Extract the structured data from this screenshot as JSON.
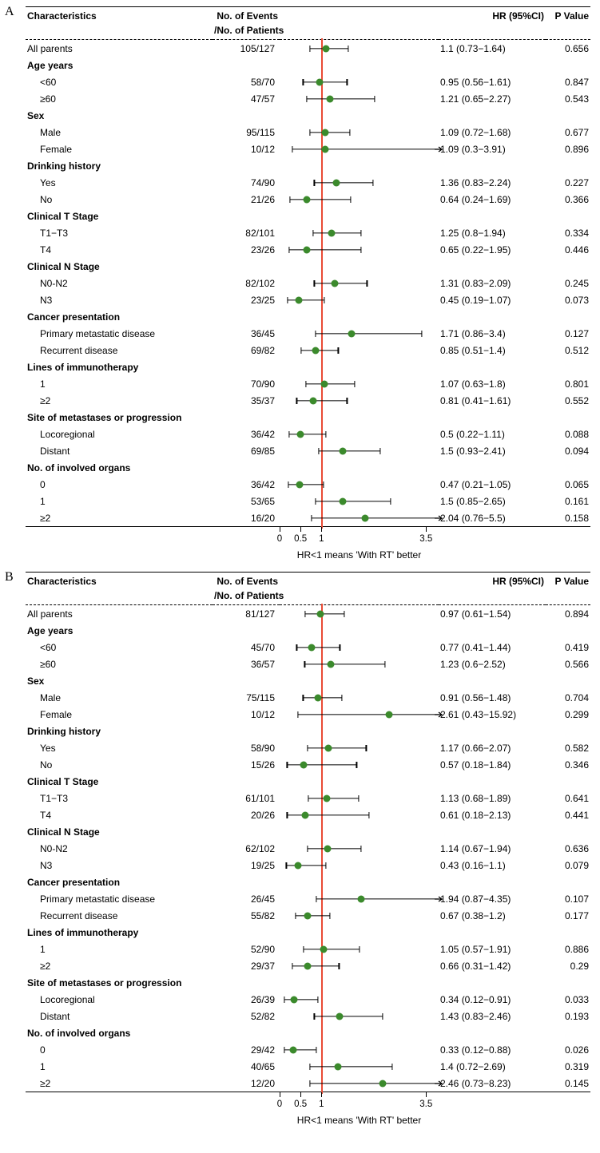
{
  "colors": {
    "dot": "#3b8a2c",
    "refline": "#e94b35",
    "ci": "#000000",
    "bg": "#ffffff",
    "text": "#000000"
  },
  "plot": {
    "xmin": 0,
    "xmax": 3.8,
    "ref": 1,
    "ticks": [
      {
        "v": 0,
        "label": "0"
      },
      {
        "v": 0.5,
        "label": "0.5"
      },
      {
        "v": 1,
        "label": "1"
      },
      {
        "v": 3.5,
        "label": "3.5"
      }
    ],
    "caption": "HR<1 means 'With RT' better"
  },
  "headers": {
    "characteristics": "Characteristics",
    "nev1": "No. of Events",
    "nev2": "/No. of Patients",
    "hr": "HR (95%CI)",
    "pv": "P Value"
  },
  "panels": [
    {
      "letter": "A",
      "rows": [
        {
          "type": "data",
          "label": "All parents",
          "nev": "105/127",
          "hr": 1.1,
          "lo": 0.73,
          "hi": 1.64,
          "hrtxt": "1.1 (0.73−1.64)",
          "p": "0.656"
        },
        {
          "type": "group",
          "label": "Age years"
        },
        {
          "type": "data",
          "label": "<60",
          "indent": true,
          "nev": "58/70",
          "hr": 0.95,
          "lo": 0.56,
          "hi": 1.61,
          "hrtxt": "0.95 (0.56−1.61)",
          "p": "0.847"
        },
        {
          "type": "data",
          "label": "≥60",
          "indent": true,
          "nev": "47/57",
          "hr": 1.21,
          "lo": 0.65,
          "hi": 2.27,
          "hrtxt": "1.21 (0.65−2.27)",
          "p": "0.543"
        },
        {
          "type": "group",
          "label": "Sex"
        },
        {
          "type": "data",
          "label": "Male",
          "indent": true,
          "nev": "95/115",
          "hr": 1.09,
          "lo": 0.72,
          "hi": 1.68,
          "hrtxt": "1.09 (0.72−1.68)",
          "p": "0.677"
        },
        {
          "type": "data",
          "label": "Female",
          "indent": true,
          "nev": "10/12",
          "hr": 1.09,
          "lo": 0.3,
          "hi": 3.91,
          "arrow": true,
          "hrtxt": "1.09 (0.3−3.91)",
          "p": "0.896"
        },
        {
          "type": "group",
          "label": "Drinking history"
        },
        {
          "type": "data",
          "label": "Yes",
          "indent": true,
          "nev": "74/90",
          "hr": 1.36,
          "lo": 0.83,
          "hi": 2.24,
          "hrtxt": "1.36 (0.83−2.24)",
          "p": "0.227"
        },
        {
          "type": "data",
          "label": "No",
          "indent": true,
          "nev": "21/26",
          "hr": 0.64,
          "lo": 0.24,
          "hi": 1.69,
          "hrtxt": "0.64 (0.24−1.69)",
          "p": "0.366"
        },
        {
          "type": "group",
          "label": "Clinical T Stage"
        },
        {
          "type": "data",
          "label": "T1−T3",
          "indent": true,
          "nev": "82/101",
          "hr": 1.25,
          "lo": 0.8,
          "hi": 1.94,
          "hrtxt": "1.25 (0.8−1.94)",
          "p": "0.334"
        },
        {
          "type": "data",
          "label": "T4",
          "indent": true,
          "nev": "23/26",
          "hr": 0.65,
          "lo": 0.22,
          "hi": 1.95,
          "hrtxt": "0.65 (0.22−1.95)",
          "p": "0.446"
        },
        {
          "type": "group",
          "label": "Clinical N Stage"
        },
        {
          "type": "data",
          "label": "N0-N2",
          "indent": true,
          "nev": "82/102",
          "hr": 1.31,
          "lo": 0.83,
          "hi": 2.09,
          "hrtxt": "1.31 (0.83−2.09)",
          "p": "0.245"
        },
        {
          "type": "data",
          "label": "N3",
          "indent": true,
          "nev": "23/25",
          "hr": 0.45,
          "lo": 0.19,
          "hi": 1.07,
          "hrtxt": "0.45 (0.19−1.07)",
          "p": "0.073"
        },
        {
          "type": "group",
          "label": "Cancer presentation"
        },
        {
          "type": "data",
          "label": "Primary metastatic disease",
          "indent": true,
          "nev": "36/45",
          "hr": 1.71,
          "lo": 0.86,
          "hi": 3.4,
          "hrtxt": "1.71 (0.86−3.4)",
          "p": "0.127"
        },
        {
          "type": "data",
          "label": "Recurrent disease",
          "indent": true,
          "nev": "69/82",
          "hr": 0.85,
          "lo": 0.51,
          "hi": 1.4,
          "hrtxt": "0.85 (0.51−1.4)",
          "p": "0.512"
        },
        {
          "type": "group",
          "label": "Lines of immunotherapy"
        },
        {
          "type": "data",
          "label": "1",
          "indent": true,
          "nev": "70/90",
          "hr": 1.07,
          "lo": 0.63,
          "hi": 1.8,
          "hrtxt": "1.07 (0.63−1.8)",
          "p": "0.801"
        },
        {
          "type": "data",
          "label": "≥2",
          "indent": true,
          "nev": "35/37",
          "hr": 0.81,
          "lo": 0.41,
          "hi": 1.61,
          "hrtxt": "0.81 (0.41−1.61)",
          "p": "0.552"
        },
        {
          "type": "group",
          "label": "Site of metastases or progression"
        },
        {
          "type": "data",
          "label": "Locoregional",
          "indent": true,
          "nev": "36/42",
          "hr": 0.5,
          "lo": 0.22,
          "hi": 1.11,
          "hrtxt": "0.5 (0.22−1.11)",
          "p": "0.088"
        },
        {
          "type": "data",
          "label": "Distant",
          "indent": true,
          "nev": "69/85",
          "hr": 1.5,
          "lo": 0.93,
          "hi": 2.41,
          "hrtxt": "1.5 (0.93−2.41)",
          "p": "0.094"
        },
        {
          "type": "group",
          "label": "No. of involved organs"
        },
        {
          "type": "data",
          "label": "0",
          "indent": true,
          "nev": "36/42",
          "hr": 0.47,
          "lo": 0.21,
          "hi": 1.05,
          "hrtxt": "0.47 (0.21−1.05)",
          "p": "0.065"
        },
        {
          "type": "data",
          "label": "1",
          "indent": true,
          "nev": "53/65",
          "hr": 1.5,
          "lo": 0.85,
          "hi": 2.65,
          "hrtxt": "1.5 (0.85−2.65)",
          "p": "0.161"
        },
        {
          "type": "data",
          "label": "≥2",
          "indent": true,
          "nev": "16/20",
          "hr": 2.04,
          "lo": 0.76,
          "hi": 5.5,
          "arrow": true,
          "hrtxt": "2.04 (0.76−5.5)",
          "p": "0.158"
        }
      ]
    },
    {
      "letter": "B",
      "rows": [
        {
          "type": "data",
          "label": "All parents",
          "nev": "81/127",
          "hr": 0.97,
          "lo": 0.61,
          "hi": 1.54,
          "hrtxt": "0.97 (0.61−1.54)",
          "p": "0.894"
        },
        {
          "type": "group",
          "label": "Age years"
        },
        {
          "type": "data",
          "label": "<60",
          "indent": true,
          "nev": "45/70",
          "hr": 0.77,
          "lo": 0.41,
          "hi": 1.44,
          "hrtxt": "0.77 (0.41−1.44)",
          "p": "0.419"
        },
        {
          "type": "data",
          "label": "≥60",
          "indent": true,
          "nev": "36/57",
          "hr": 1.23,
          "lo": 0.6,
          "hi": 2.52,
          "hrtxt": "1.23 (0.6−2.52)",
          "p": "0.566"
        },
        {
          "type": "group",
          "label": "Sex"
        },
        {
          "type": "data",
          "label": "Male",
          "indent": true,
          "nev": "75/115",
          "hr": 0.91,
          "lo": 0.56,
          "hi": 1.48,
          "hrtxt": "0.91 (0.56−1.48)",
          "p": "0.704"
        },
        {
          "type": "data",
          "label": "Female",
          "indent": true,
          "nev": "10/12",
          "hr": 2.61,
          "lo": 0.43,
          "hi": 15.92,
          "arrow": true,
          "hrtxt": "2.61 (0.43−15.92)",
          "p": "0.299"
        },
        {
          "type": "group",
          "label": "Drinking history"
        },
        {
          "type": "data",
          "label": "Yes",
          "indent": true,
          "nev": "58/90",
          "hr": 1.17,
          "lo": 0.66,
          "hi": 2.07,
          "hrtxt": "1.17 (0.66−2.07)",
          "p": "0.582"
        },
        {
          "type": "data",
          "label": "No",
          "indent": true,
          "nev": "15/26",
          "hr": 0.57,
          "lo": 0.18,
          "hi": 1.84,
          "hrtxt": "0.57 (0.18−1.84)",
          "p": "0.346"
        },
        {
          "type": "group",
          "label": "Clinical T Stage"
        },
        {
          "type": "data",
          "label": "T1−T3",
          "indent": true,
          "nev": "61/101",
          "hr": 1.13,
          "lo": 0.68,
          "hi": 1.89,
          "hrtxt": "1.13 (0.68−1.89)",
          "p": "0.641"
        },
        {
          "type": "data",
          "label": "T4",
          "indent": true,
          "nev": "20/26",
          "hr": 0.61,
          "lo": 0.18,
          "hi": 2.13,
          "hrtxt": "0.61 (0.18−2.13)",
          "p": "0.441"
        },
        {
          "type": "group",
          "label": "Clinical N Stage"
        },
        {
          "type": "data",
          "label": "N0-N2",
          "indent": true,
          "nev": "62/102",
          "hr": 1.14,
          "lo": 0.67,
          "hi": 1.94,
          "hrtxt": "1.14 (0.67−1.94)",
          "p": "0.636"
        },
        {
          "type": "data",
          "label": "N3",
          "indent": true,
          "nev": "19/25",
          "hr": 0.43,
          "lo": 0.16,
          "hi": 1.1,
          "hrtxt": "0.43 (0.16−1.1)",
          "p": "0.079"
        },
        {
          "type": "group",
          "label": "Cancer presentation"
        },
        {
          "type": "data",
          "label": "Primary metastatic disease",
          "indent": true,
          "nev": "26/45",
          "hr": 1.94,
          "lo": 0.87,
          "hi": 4.35,
          "arrow": true,
          "hrtxt": "1.94 (0.87−4.35)",
          "p": "0.107"
        },
        {
          "type": "data",
          "label": "Recurrent disease",
          "indent": true,
          "nev": "55/82",
          "hr": 0.67,
          "lo": 0.38,
          "hi": 1.2,
          "hrtxt": "0.67 (0.38−1.2)",
          "p": "0.177"
        },
        {
          "type": "group",
          "label": "Lines of immunotherapy"
        },
        {
          "type": "data",
          "label": "1",
          "indent": true,
          "nev": "52/90",
          "hr": 1.05,
          "lo": 0.57,
          "hi": 1.91,
          "hrtxt": "1.05 (0.57−1.91)",
          "p": "0.886"
        },
        {
          "type": "data",
          "label": "≥2",
          "indent": true,
          "nev": "29/37",
          "hr": 0.66,
          "lo": 0.31,
          "hi": 1.42,
          "hrtxt": "0.66 (0.31−1.42)",
          "p": "0.29"
        },
        {
          "type": "group",
          "label": "Site of metastases or progression"
        },
        {
          "type": "data",
          "label": "Locoregional",
          "indent": true,
          "nev": "26/39",
          "hr": 0.34,
          "lo": 0.12,
          "hi": 0.91,
          "hrtxt": "0.34 (0.12−0.91)",
          "p": "0.033"
        },
        {
          "type": "data",
          "label": "Distant",
          "indent": true,
          "nev": "52/82",
          "hr": 1.43,
          "lo": 0.83,
          "hi": 2.46,
          "hrtxt": "1.43 (0.83−2.46)",
          "p": "0.193"
        },
        {
          "type": "group",
          "label": "No. of involved organs"
        },
        {
          "type": "data",
          "label": "0",
          "indent": true,
          "nev": "29/42",
          "hr": 0.33,
          "lo": 0.12,
          "hi": 0.88,
          "hrtxt": "0.33 (0.12−0.88)",
          "p": "0.026"
        },
        {
          "type": "data",
          "label": "1",
          "indent": true,
          "nev": "40/65",
          "hr": 1.4,
          "lo": 0.72,
          "hi": 2.69,
          "hrtxt": "1.4 (0.72−2.69)",
          "p": "0.319"
        },
        {
          "type": "data",
          "label": "≥2",
          "indent": true,
          "nev": "12/20",
          "hr": 2.46,
          "lo": 0.73,
          "hi": 8.23,
          "arrow": true,
          "hrtxt": "2.46 (0.73−8.23)",
          "p": "0.145"
        }
      ]
    }
  ]
}
